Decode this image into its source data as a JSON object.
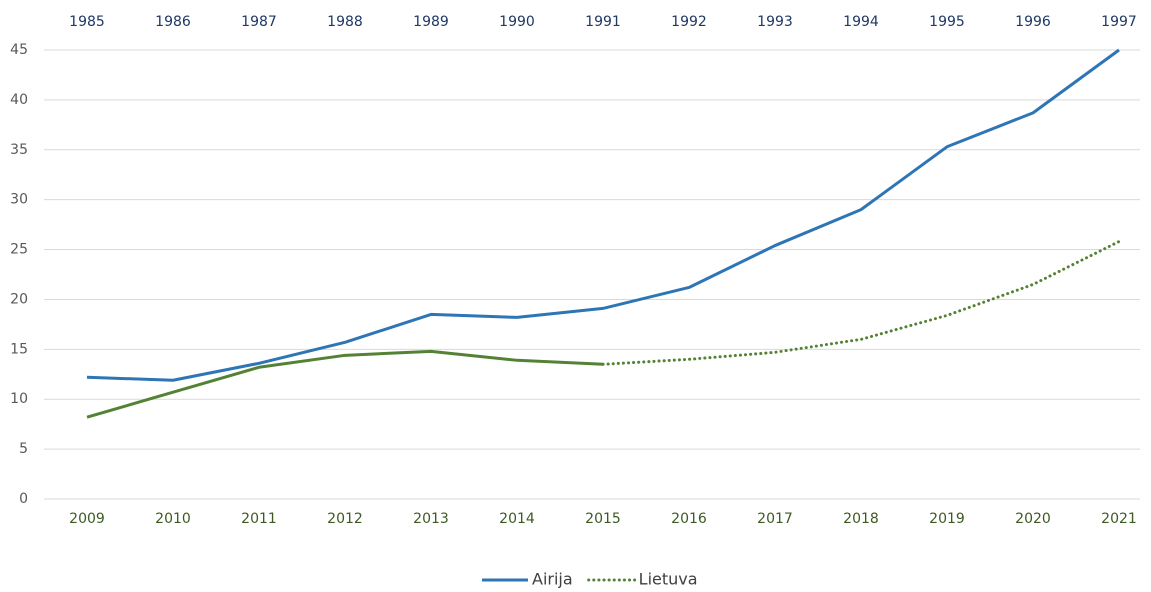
{
  "chart_data": {
    "type": "line",
    "categories": [
      "2009",
      "2010",
      "2011",
      "2012",
      "2013",
      "2014",
      "2015",
      "2016",
      "2017",
      "2018",
      "2019",
      "2020",
      "2021"
    ],
    "x2_categories": [
      "1985",
      "1986",
      "1987",
      "1988",
      "1989",
      "1990",
      "1991",
      "1992",
      "1993",
      "1994",
      "1995",
      "1996",
      "1997"
    ],
    "series": [
      {
        "name": "Airija",
        "color": "#2e75b6",
        "axis": "x2",
        "style": "solid",
        "values": [
          12.2,
          11.9,
          13.6,
          15.7,
          18.5,
          18.2,
          19.1,
          21.2,
          25.4,
          29.0,
          35.3,
          38.7,
          45.0
        ]
      },
      {
        "name": "Lietuva",
        "color": "#548235",
        "axis": "x",
        "style": "dotted",
        "dotted_from": "2015",
        "values": [
          8.2,
          10.7,
          13.2,
          14.4,
          14.8,
          13.9,
          13.5,
          14.0,
          14.7,
          16.0,
          18.4,
          21.5,
          25.8
        ]
      }
    ],
    "ylim": [
      0,
      45
    ],
    "yticks": [
      0,
      5,
      10,
      15,
      20,
      25,
      30,
      35,
      40,
      45
    ],
    "grid": true,
    "legend": "bottom"
  }
}
